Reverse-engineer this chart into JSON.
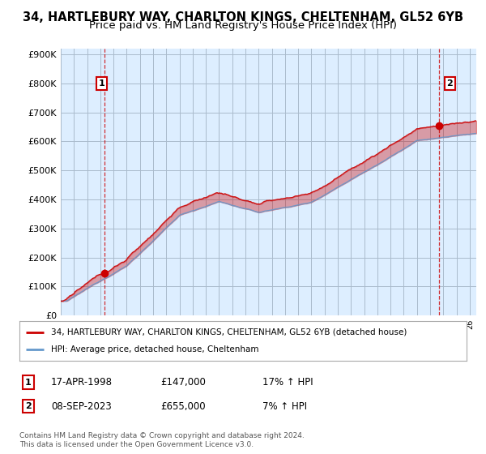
{
  "title": "34, HARTLEBURY WAY, CHARLTON KINGS, CHELTENHAM, GL52 6YB",
  "subtitle": "Price paid vs. HM Land Registry's House Price Index (HPI)",
  "ylabel_ticks": [
    "£0",
    "£100K",
    "£200K",
    "£300K",
    "£400K",
    "£500K",
    "£600K",
    "£700K",
    "£800K",
    "£900K"
  ],
  "ytick_values": [
    0,
    100000,
    200000,
    300000,
    400000,
    500000,
    600000,
    700000,
    800000,
    900000
  ],
  "ylim": [
    0,
    920000
  ],
  "xlim_start": 1995.0,
  "xlim_end": 2026.5,
  "legend_line1": "34, HARTLEBURY WAY, CHARLTON KINGS, CHELTENHAM, GL52 6YB (detached house)",
  "legend_line2": "HPI: Average price, detached house, Cheltenham",
  "sale1_date": "17-APR-1998",
  "sale1_price": "£147,000",
  "sale1_hpi": "17% ↑ HPI",
  "sale1_year": 1998.3,
  "sale1_value": 147000,
  "sale2_date": "08-SEP-2023",
  "sale2_price": "£655,000",
  "sale2_hpi": "7% ↑ HPI",
  "sale2_year": 2023.69,
  "sale2_value": 655000,
  "red_color": "#cc0000",
  "blue_color": "#6699cc",
  "chart_bg": "#ddeeff",
  "background_color": "#ffffff",
  "grid_color": "#aabbcc",
  "annotation_box_color": "#cc0000",
  "copyright_text": "Contains HM Land Registry data © Crown copyright and database right 2024.\nThis data is licensed under the Open Government Licence v3.0.",
  "title_fontsize": 10.5,
  "subtitle_fontsize": 9.5
}
